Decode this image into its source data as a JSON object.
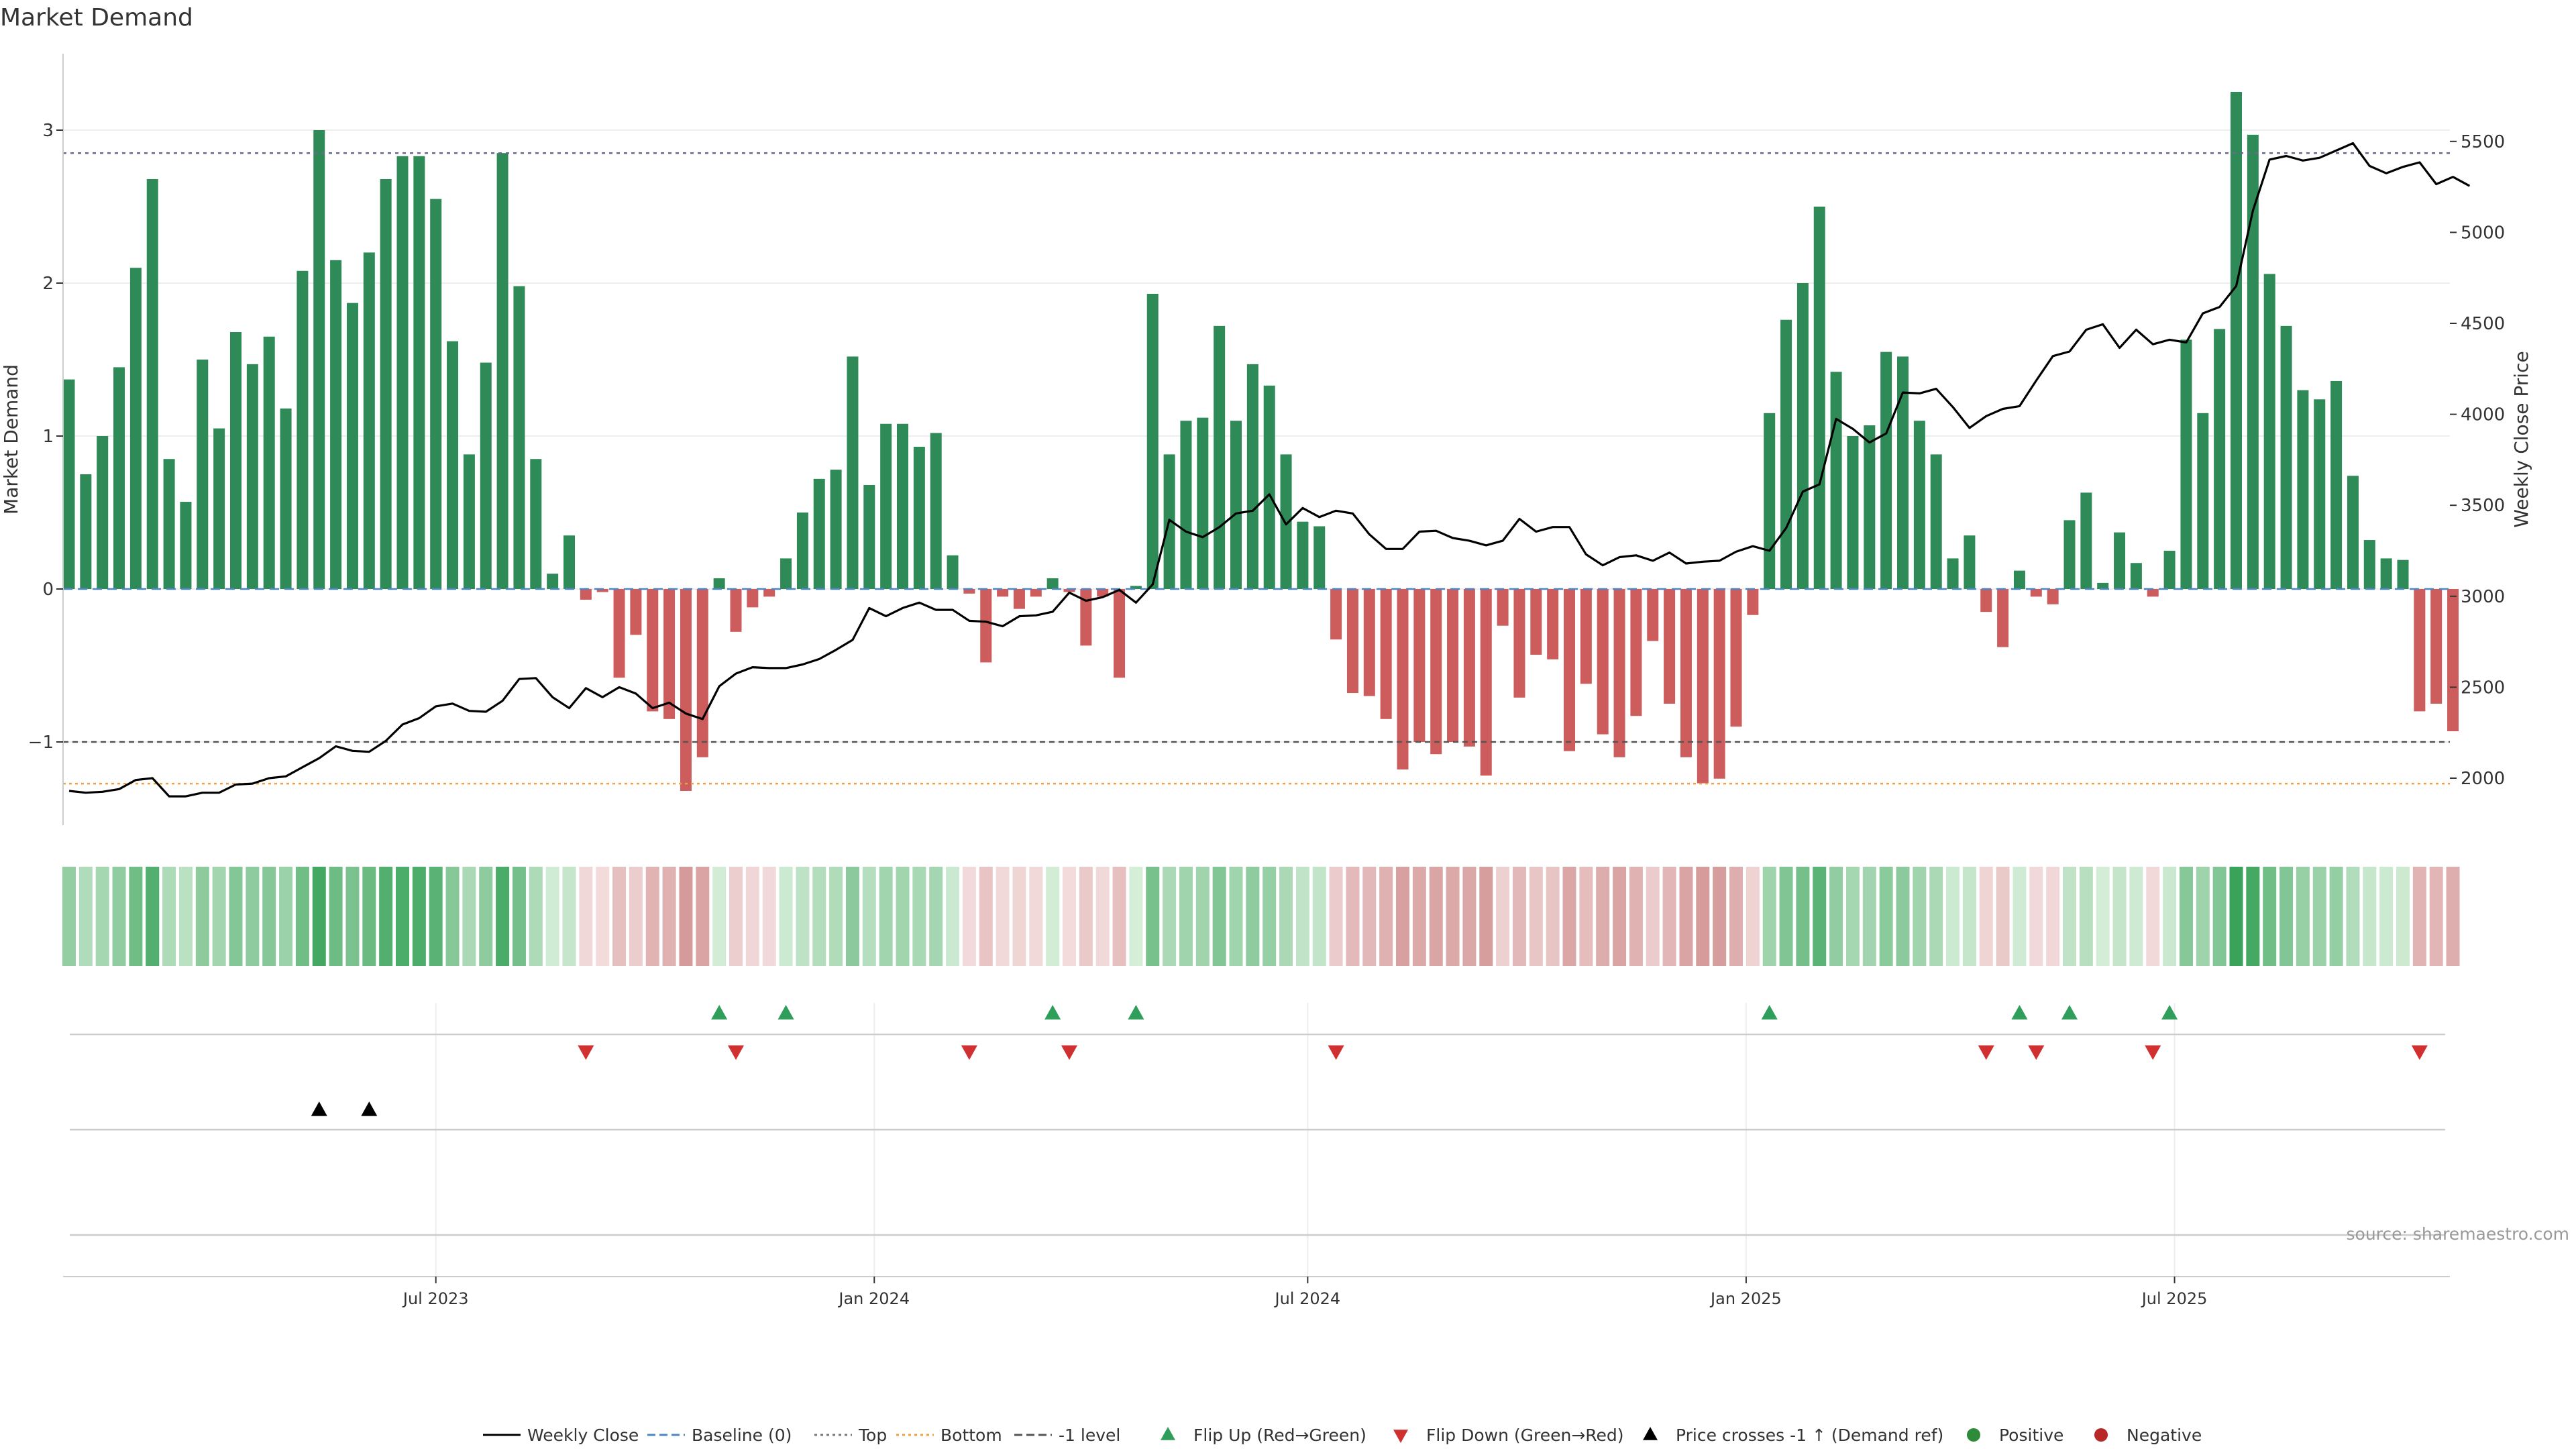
{
  "chart_data": {
    "type": "bar",
    "title": "Market Demand",
    "ylabel_left": "Market Demand",
    "ylabel_right": "Weekly Close Price",
    "source": "source: sharemaestro.com",
    "ylim_left": [
      -1.6,
      3.5
    ],
    "ylim_right": [
      1800,
      5850
    ],
    "left_ticks": [
      3,
      2,
      1,
      0,
      -1
    ],
    "left_tick_labels": [
      "3",
      "2",
      "1",
      "0",
      "−1"
    ],
    "right_ticks": [
      5500,
      5000,
      4500,
      4000,
      3500,
      3000,
      2500,
      2000
    ],
    "right_tick_labels": [
      "5500",
      "5000",
      "4500",
      "4000",
      "3500",
      "3000",
      "2500",
      "2000"
    ],
    "x_ticks": [
      {
        "label": "Jul 2023",
        "week": 22
      },
      {
        "label": "Jan 2024",
        "week": 48.3
      },
      {
        "label": "Jul 2024",
        "week": 74.3
      },
      {
        "label": "Jan 2025",
        "week": 100.6
      },
      {
        "label": "Jul 2025",
        "week": 126.3
      }
    ],
    "reference_lines": {
      "top": 2.85,
      "bottom": 1970,
      "minus_one": -1
    },
    "demand": [
      1.37,
      0.75,
      1.0,
      1.45,
      2.1,
      2.68,
      0.85,
      0.57,
      1.5,
      1.05,
      1.68,
      1.47,
      1.65,
      1.18,
      2.08,
      3.0,
      2.15,
      1.87,
      2.2,
      2.68,
      2.83,
      2.83,
      2.55,
      1.62,
      0.88,
      1.48,
      2.85,
      1.98,
      0.85,
      0.1,
      0.35,
      -0.07,
      -0.02,
      -0.58,
      -0.3,
      -0.8,
      -0.85,
      -1.32,
      -1.1,
      0.07,
      -0.28,
      -0.12,
      -0.05,
      0.2,
      0.5,
      0.72,
      0.78,
      1.52,
      0.68,
      1.08,
      1.08,
      0.93,
      1.02,
      0.22,
      -0.03,
      -0.48,
      -0.05,
      -0.13,
      -0.05,
      0.07,
      -0.02,
      -0.37,
      -0.05,
      -0.58,
      0.02,
      1.93,
      0.88,
      1.1,
      1.12,
      1.72,
      1.1,
      1.47,
      1.33,
      0.88,
      0.44,
      0.41,
      -0.33,
      -0.68,
      -0.7,
      -0.85,
      -1.18,
      -1.0,
      -1.08,
      -1.0,
      -1.03,
      -1.22,
      -0.24,
      -0.71,
      -0.43,
      -0.46,
      -1.06,
      -0.62,
      -0.95,
      -1.1,
      -0.83,
      -0.34,
      -0.75,
      -1.1,
      -1.27,
      -1.24,
      -0.9,
      -0.17,
      1.15,
      1.76,
      2.0,
      2.5,
      1.42,
      1.0,
      1.07,
      1.55,
      1.52,
      1.1,
      0.88,
      0.2,
      0.35,
      -0.15,
      -0.38,
      0.12,
      -0.05,
      -0.1,
      0.45,
      0.63,
      0.04,
      0.37,
      0.17,
      -0.05,
      0.25,
      1.63,
      1.15,
      1.7,
      3.25,
      2.97,
      2.06,
      1.72,
      1.3,
      1.24,
      1.36,
      0.74,
      0.32,
      0.2,
      0.19,
      -0.8,
      -0.75,
      -0.93
    ],
    "close": [
      1930,
      1920,
      1925,
      1940,
      1990,
      2000,
      1900,
      1900,
      1920,
      1920,
      1965,
      1970,
      2000,
      2010,
      2060,
      2110,
      2175,
      2150,
      2145,
      2205,
      2295,
      2330,
      2395,
      2410,
      2370,
      2365,
      2425,
      2545,
      2550,
      2445,
      2385,
      2495,
      2445,
      2500,
      2465,
      2385,
      2415,
      2355,
      2325,
      2505,
      2575,
      2610,
      2605,
      2605,
      2625,
      2655,
      2705,
      2760,
      2935,
      2890,
      2935,
      2965,
      2925,
      2925,
      2865,
      2860,
      2835,
      2890,
      2895,
      2915,
      3020,
      2975,
      2995,
      3035,
      2965,
      3065,
      3420,
      3355,
      3325,
      3380,
      3455,
      3470,
      3560,
      3395,
      3485,
      3435,
      3470,
      3455,
      3340,
      3260,
      3260,
      3355,
      3360,
      3320,
      3305,
      3280,
      3305,
      3425,
      3355,
      3380,
      3380,
      3230,
      3170,
      3215,
      3225,
      3195,
      3240,
      3180,
      3190,
      3195,
      3245,
      3275,
      3250,
      3375,
      3575,
      3615,
      3975,
      3920,
      3845,
      3895,
      4120,
      4115,
      4140,
      4040,
      3925,
      3990,
      4030,
      4045,
      4185,
      4320,
      4345,
      4465,
      4495,
      4365,
      4465,
      4385,
      4410,
      4395,
      4555,
      4590,
      4705,
      5120,
      5400,
      5420,
      5395,
      5410,
      5450,
      5490,
      5365,
      5325,
      5360,
      5385,
      5265,
      5305,
      5255
    ]
  },
  "flip_up_weeks": [
    39,
    43,
    59,
    64,
    102,
    117,
    120,
    126
  ],
  "flip_down_weeks": [
    31,
    40,
    54,
    60,
    76,
    115,
    118,
    125,
    141
  ],
  "price_cross_weeks": [
    15,
    18
  ],
  "legend": [
    {
      "key": "weekly-close",
      "label": "Weekly Close",
      "symbol": "line-solid",
      "color": "#000000"
    },
    {
      "key": "baseline",
      "label": "Baseline (0)",
      "symbol": "line-dashed",
      "color": "#4a86c8"
    },
    {
      "key": "top",
      "label": "Top",
      "symbol": "line-dotted",
      "color": "#777777"
    },
    {
      "key": "bottom",
      "label": "Bottom",
      "symbol": "line-dotted",
      "color": "#f0a040"
    },
    {
      "key": "minus-one",
      "label": "-1 level",
      "symbol": "line-dashed",
      "color": "#555555"
    },
    {
      "key": "flip-up",
      "label": "Flip Up (Red→Green)",
      "symbol": "triangle-up",
      "color": "#2e9e5a"
    },
    {
      "key": "flip-down",
      "label": "Flip Down (Green→Red)",
      "symbol": "triangle-down",
      "color": "#d03030"
    },
    {
      "key": "price-crosses",
      "label": "Price crosses -1 ↑ (Demand ref)",
      "symbol": "triangle-up",
      "color": "#000000"
    },
    {
      "key": "positive",
      "label": "Positive",
      "symbol": "dot",
      "color": "#2e8b3a"
    },
    {
      "key": "negative",
      "label": "Negative",
      "symbol": "dot",
      "color": "#b82828"
    }
  ],
  "colors": {
    "positive_bar": "#2e8b57",
    "negative_bar": "#cd5c5c",
    "close_line": "#000000",
    "baseline": "#4a86c8",
    "top_line": "#6a6a90",
    "bottom_line": "#f0a040",
    "minus_one_line": "#555555",
    "flip_up": "#2e9e5a",
    "flip_down": "#d03030",
    "price_cross": "#000000"
  }
}
